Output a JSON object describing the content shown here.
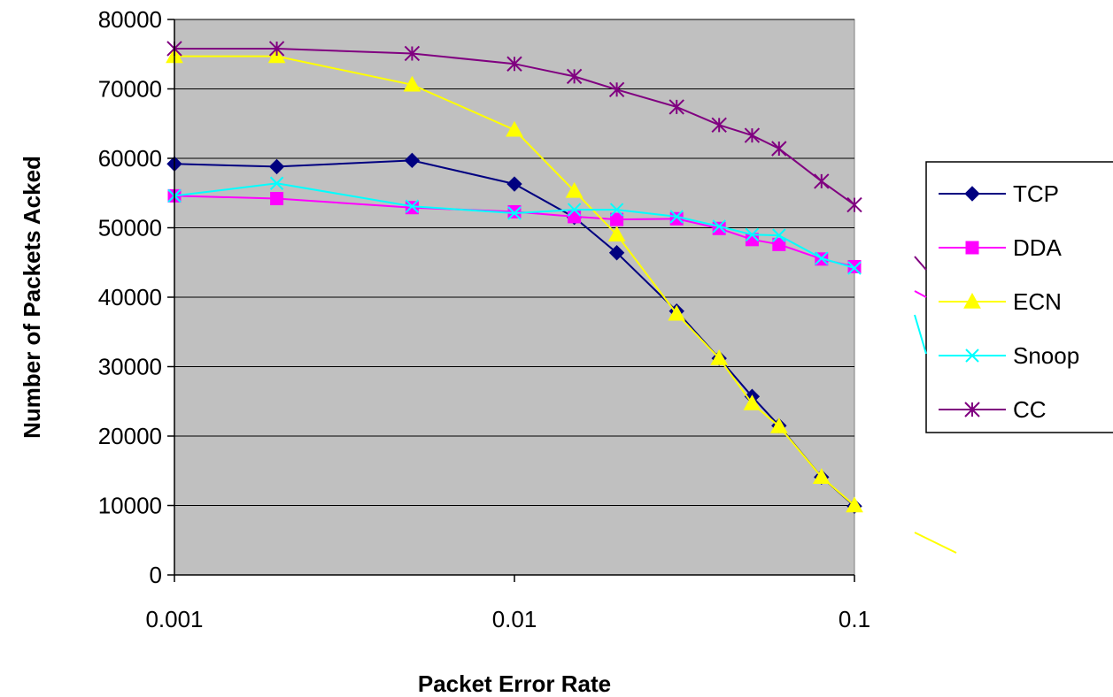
{
  "chart_data": {
    "type": "line",
    "xlabel": "Packet Error Rate",
    "ylabel": "Number of Packets Acked",
    "x_scale": "log",
    "xlim": [
      0.001,
      0.1
    ],
    "ylim": [
      0,
      80000
    ],
    "x_ticks": [
      0.001,
      0.01,
      0.1
    ],
    "x_tick_labels": [
      "0.001",
      "0.01",
      "0.1"
    ],
    "y_ticks": [
      0,
      10000,
      20000,
      30000,
      40000,
      50000,
      60000,
      70000,
      80000
    ],
    "y_tick_labels": [
      "0",
      "10000",
      "20000",
      "30000",
      "40000",
      "50000",
      "60000",
      "70000",
      "80000"
    ],
    "grid": "horizontal",
    "plot_background": "#c0c0c0",
    "legend_position": "right",
    "x": [
      0.001,
      0.002,
      0.005,
      0.01,
      0.015,
      0.02,
      0.03,
      0.04,
      0.05,
      0.06,
      0.08,
      0.1
    ],
    "series": [
      {
        "name": "TCP",
        "color": "#000080",
        "marker": "diamond",
        "values": [
          59200,
          58800,
          59700,
          56300,
          51500,
          46400,
          38000,
          31200,
          25700,
          21500,
          14100,
          9900
        ]
      },
      {
        "name": "DDA",
        "color": "#ff00ff",
        "marker": "square",
        "values": [
          54600,
          54200,
          52900,
          52300,
          51600,
          51200,
          51300,
          49900,
          48300,
          47600,
          45500,
          44400
        ]
      },
      {
        "name": "ECN",
        "color": "#ffff00",
        "marker": "triangle",
        "values": [
          74700,
          74700,
          70600,
          64100,
          55300,
          49000,
          37600,
          31200,
          24700,
          21400,
          14100,
          10000
        ]
      },
      {
        "name": "Snoop",
        "color": "#00ffff",
        "marker": "x",
        "values": [
          54600,
          56400,
          53100,
          52100,
          52600,
          52600,
          51600,
          50200,
          49000,
          48900,
          45600,
          44200
        ]
      },
      {
        "name": "CC",
        "color": "#800080",
        "marker": "star",
        "values": [
          75800,
          75800,
          75100,
          73600,
          71800,
          69900,
          67400,
          64800,
          63300,
          61400,
          56700,
          53300
        ]
      }
    ]
  }
}
